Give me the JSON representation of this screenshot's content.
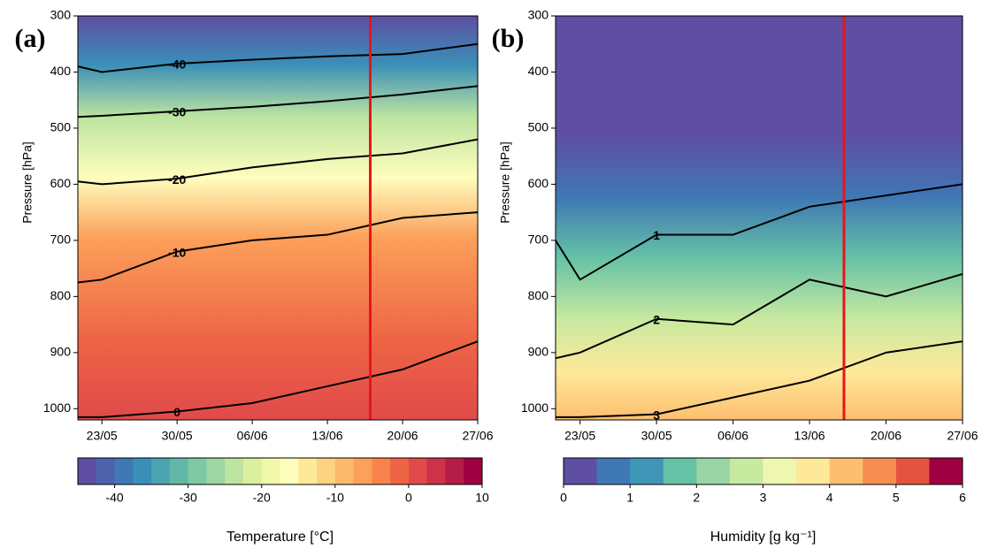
{
  "chart_data": [
    {
      "type": "heatmap",
      "panel_label": "(a)",
      "y_label": "Pressure [hPa]",
      "xticks": [
        {
          "value": 0,
          "label": "23/05"
        },
        {
          "value": 1,
          "label": "30/05"
        },
        {
          "value": 2,
          "label": "06/06"
        },
        {
          "value": 3,
          "label": "13/06"
        },
        {
          "value": 4,
          "label": "20/06"
        },
        {
          "value": 5,
          "label": "27/06"
        }
      ],
      "xlim": [
        -0.32,
        5
      ],
      "ylim": [
        300,
        1020
      ],
      "yticks": [
        300,
        400,
        500,
        600,
        700,
        800,
        900,
        1000
      ],
      "y_inverted": true,
      "vline": {
        "x": 3.57,
        "color": "#e8141c"
      },
      "contour_x": [
        -0.32,
        0,
        1,
        2,
        3,
        4,
        5
      ],
      "series": [
        {
          "name": "-40",
          "color": "#000000",
          "values": [
            390,
            400,
            385,
            378,
            372,
            368,
            350
          ]
        },
        {
          "name": "-30",
          "color": "#000000",
          "values": [
            480,
            478,
            470,
            462,
            452,
            440,
            425
          ]
        },
        {
          "name": "-20",
          "color": "#000000",
          "values": [
            595,
            600,
            590,
            570,
            555,
            545,
            520
          ]
        },
        {
          "name": "-10",
          "color": "#000000",
          "values": [
            775,
            770,
            720,
            700,
            690,
            660,
            650
          ]
        },
        {
          "name": "0",
          "color": "#000000",
          "values": [
            1015,
            1015,
            1005,
            990,
            960,
            930,
            880
          ]
        }
      ],
      "colorbar": {
        "label": "Temperature [°C]",
        "lim": [
          -45,
          10
        ],
        "ticks": [
          -40,
          -30,
          -20,
          -10,
          0,
          10
        ],
        "colors": [
          "#5e4fa2",
          "#4d62ad",
          "#3f78b4",
          "#3a8fb8",
          "#4aa5b0",
          "#62b8a6",
          "#7fc8a4",
          "#9dd5a3",
          "#bde4a0",
          "#dbf09f",
          "#f1f8a8",
          "#fefebd",
          "#fee99a",
          "#fed283",
          "#fdb96b",
          "#fca05a",
          "#f7834d",
          "#ee6545",
          "#e04a4a",
          "#cd3248",
          "#b41d47",
          "#9e0142"
        ]
      }
    },
    {
      "type": "heatmap",
      "panel_label": "(b)",
      "y_label": "Pressure [hPa]",
      "xticks": [
        {
          "value": 0,
          "label": "23/05"
        },
        {
          "value": 1,
          "label": "30/05"
        },
        {
          "value": 2,
          "label": "06/06"
        },
        {
          "value": 3,
          "label": "13/06"
        },
        {
          "value": 4,
          "label": "20/06"
        },
        {
          "value": 5,
          "label": "27/06"
        }
      ],
      "xlim": [
        -0.32,
        5
      ],
      "ylim": [
        300,
        1020
      ],
      "yticks": [
        300,
        400,
        500,
        600,
        700,
        800,
        900,
        1000
      ],
      "y_inverted": true,
      "vline": {
        "x": 3.45,
        "color": "#e8141c"
      },
      "contour_x": [
        -0.32,
        0,
        1,
        2,
        3,
        4,
        5
      ],
      "series": [
        {
          "name": "1",
          "color": "#000000",
          "values": [
            700,
            770,
            690,
            690,
            640,
            620,
            600
          ]
        },
        {
          "name": "2",
          "color": "#000000",
          "values": [
            910,
            900,
            840,
            850,
            770,
            800,
            760
          ]
        },
        {
          "name": "3",
          "color": "#000000",
          "values": [
            1015,
            1015,
            1010,
            980,
            950,
            900,
            880
          ]
        }
      ],
      "colorbar": {
        "label": "Humidity [g kg⁻¹]",
        "lim": [
          0,
          6
        ],
        "ticks": [
          0,
          1,
          2,
          3,
          4,
          5,
          6
        ],
        "colors": [
          "#5e4fa2",
          "#3f78b4",
          "#3f96b7",
          "#66c2a5",
          "#99d5a4",
          "#c7e9a0",
          "#eef7b0",
          "#fee99a",
          "#fdbf6f",
          "#f88d52",
          "#e4533f",
          "#9e0142"
        ]
      }
    }
  ]
}
